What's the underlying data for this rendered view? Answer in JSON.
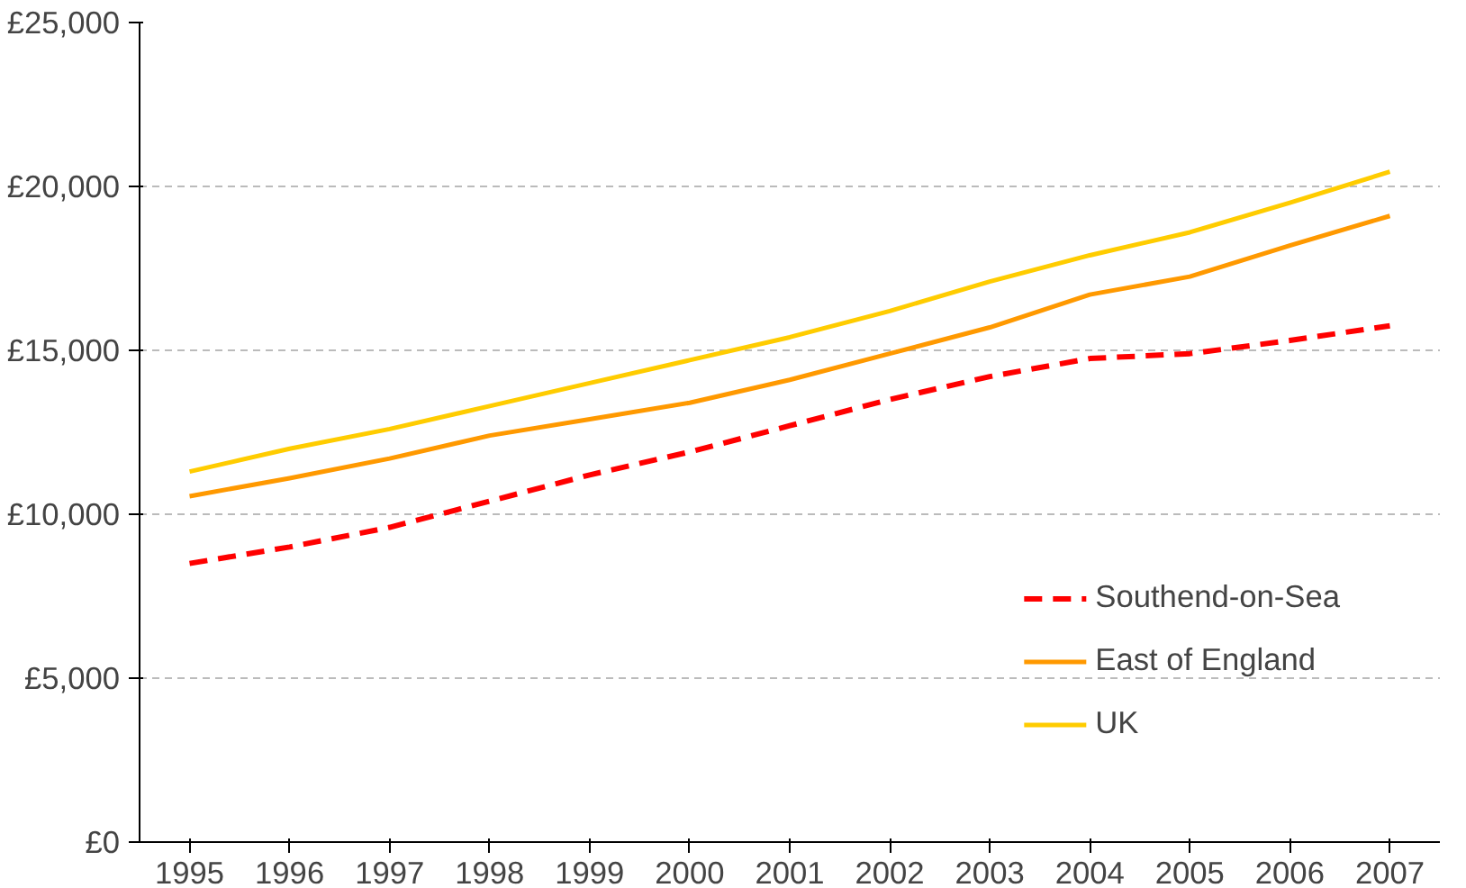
{
  "chart_data": {
    "type": "line",
    "categories": [
      "1995",
      "1996",
      "1997",
      "1998",
      "1999",
      "2000",
      "2001",
      "2002",
      "2003",
      "2004",
      "2005",
      "2006",
      "2007"
    ],
    "series": [
      {
        "name": "Southend-on-Sea",
        "color": "#ff0000",
        "line_style": "dashed",
        "values": [
          8500,
          9000,
          9600,
          10400,
          11200,
          11900,
          12700,
          13500,
          14200,
          14750,
          14900,
          15300,
          15750
        ]
      },
      {
        "name": "East of England",
        "color": "#ff9900",
        "line_style": "solid",
        "values": [
          10550,
          11100,
          11700,
          12400,
          12900,
          13400,
          14100,
          14900,
          15700,
          16700,
          17250,
          18200,
          19100
        ]
      },
      {
        "name": "UK",
        "color": "#ffcc00",
        "line_style": "solid",
        "values": [
          11300,
          12000,
          12600,
          13300,
          14000,
          14700,
          15400,
          16200,
          17100,
          17900,
          18600,
          19500,
          20450
        ]
      }
    ],
    "ylim": [
      0,
      25000
    ],
    "yticks": [
      {
        "value": 0,
        "label": "£0"
      },
      {
        "value": 5000,
        "label": "£5,000"
      },
      {
        "value": 10000,
        "label": "£10,000"
      },
      {
        "value": 15000,
        "label": "£15,000"
      },
      {
        "value": 20000,
        "label": "£20,000"
      },
      {
        "value": 25000,
        "label": "£25,000"
      }
    ],
    "grid": "y",
    "legend": "bottom right",
    "marker": "none"
  }
}
